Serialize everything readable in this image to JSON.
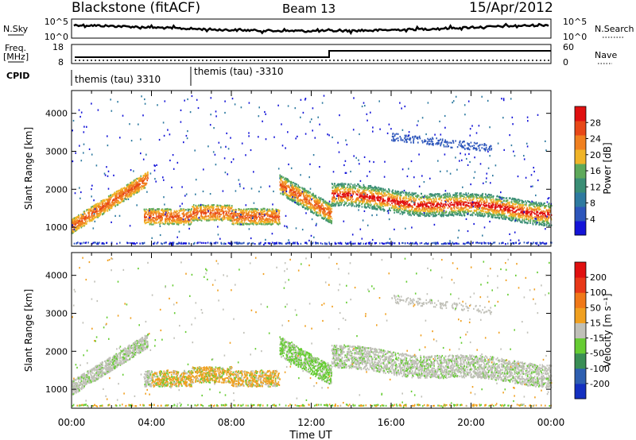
{
  "header": {
    "station": "Blackstone (fitACF)",
    "beam": "Beam 13",
    "date": "15/Apr/2012"
  },
  "summary": {
    "nsky_label": "N.Sky",
    "nsky_ticks": [
      "10^5",
      "10^0"
    ],
    "nsearch_label": "N.Search",
    "nsearch_ticks": [
      "10^5",
      "10^0"
    ],
    "freq_label_line1": "Freq.",
    "freq_label_line2": "[MHz]",
    "freq_ticks": [
      "18",
      "8"
    ],
    "nave_label": "Nave",
    "nave_ticks": [
      "60",
      "0"
    ],
    "cpid_label": "CPID",
    "cpid_segments": [
      {
        "label": "themis (tau) 3310",
        "start_hour": 0,
        "end_hour": 6
      },
      {
        "label": "themis (tau) -3310",
        "start_hour": 6,
        "end_hour": 24
      }
    ]
  },
  "chart_data": [
    {
      "type": "heatmap",
      "name": "power",
      "ylabel": "Slant Range [km]",
      "xlim": [
        0,
        24
      ],
      "ylim": [
        500,
        4600
      ],
      "yticks": [
        "1000",
        "2000",
        "3000",
        "4000"
      ],
      "colorbar": {
        "label": "Power [dB]",
        "ticks": [
          "4",
          "8",
          "12",
          "16",
          "20",
          "24",
          "28"
        ],
        "colors": [
          "#1414d8",
          "#2d56bb",
          "#2e7aa0",
          "#3a8e75",
          "#5ea95a",
          "#f0b428",
          "#f08020",
          "#e84818",
          "#e01010"
        ],
        "range": [
          0,
          32
        ]
      }
    },
    {
      "type": "heatmap",
      "name": "velocity",
      "ylabel": "Slant Range [km]",
      "xlabel": "Time UT",
      "xlim": [
        0,
        24
      ],
      "ylim": [
        500,
        4600
      ],
      "yticks": [
        "1000",
        "2000",
        "3000",
        "4000"
      ],
      "xticks": [
        "00:00",
        "04:00",
        "08:00",
        "12:00",
        "16:00",
        "20:00",
        "00:00"
      ],
      "colorbar": {
        "label": "Velocity [m s⁻¹]",
        "ticks": [
          "200",
          "100",
          "50",
          "15",
          "-15",
          "-50",
          "-100",
          "-200"
        ],
        "colors": [
          "#1430c0",
          "#2e5fb0",
          "#3a8e55",
          "#66cc33",
          "#c0c0b8",
          "#f0a020",
          "#f07818",
          "#e83818",
          "#e01010"
        ]
      }
    }
  ]
}
